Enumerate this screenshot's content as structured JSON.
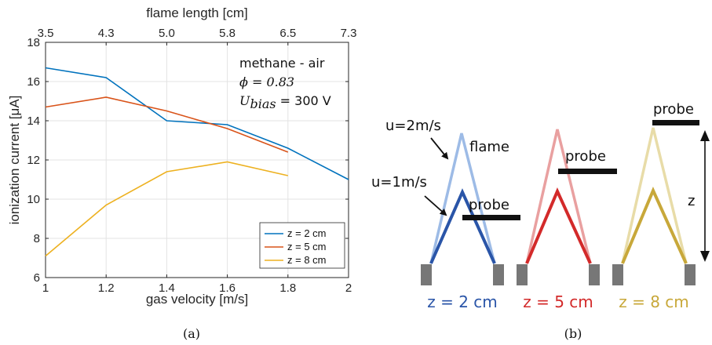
{
  "chart_data": {
    "type": "line",
    "xlabel": "gas velocity [m/s]",
    "ylabel": "ionization current [μA]",
    "top_xlabel": "flame length [cm]",
    "xlim": [
      1,
      2
    ],
    "ylim": [
      6,
      18
    ],
    "xticks": [
      "1",
      "1.2",
      "1.4",
      "1.6",
      "1.8",
      "2"
    ],
    "yticks": [
      "6",
      "8",
      "10",
      "12",
      "14",
      "16",
      "18"
    ],
    "top_ticks": [
      "3.5",
      "4.3",
      "5.0",
      "5.8",
      "6.5",
      "7.3"
    ],
    "grid": true,
    "legend_position": "bottom-right",
    "annotation": {
      "line1": "methane - air",
      "phi": "ϕ = 0.83",
      "u_sym": "U",
      "u_sub": "bias",
      "u_val": " = 300 V"
    },
    "series": [
      {
        "name": "z = 2 cm",
        "color": "#0072BD",
        "x": [
          1,
          1.2,
          1.4,
          1.6,
          1.8,
          2
        ],
        "y": [
          16.7,
          16.2,
          14.0,
          13.8,
          12.6,
          11.0
        ]
      },
      {
        "name": "z = 5 cm",
        "color": "#D95319",
        "x": [
          1,
          1.2,
          1.4,
          1.6,
          1.8
        ],
        "y": [
          14.7,
          15.2,
          14.5,
          13.6,
          12.4
        ]
      },
      {
        "name": "z = 8 cm",
        "color": "#EDB120",
        "x": [
          1,
          1.2,
          1.4,
          1.6,
          1.8
        ],
        "y": [
          7.1,
          9.7,
          11.4,
          11.9,
          11.2
        ]
      }
    ]
  },
  "captions": {
    "a": "(a)",
    "b": "(b)"
  },
  "diagram": {
    "u2": "u=2m/s",
    "u1": "u=1m/s",
    "flame": "flame",
    "probe_labels": [
      "probe",
      "probe",
      "probe"
    ],
    "z_label": "z",
    "z_labels": [
      "z = 2 cm",
      "z = 5 cm",
      "z = 8 cm"
    ],
    "colors": {
      "blue": "#2A55A8",
      "blue_light": "#9DBBE6",
      "red": "#D32A2A",
      "red_light": "#E9A0A0",
      "gold": "#C8A83A",
      "gold_light": "#E8DCA8",
      "burner": "#777777"
    }
  }
}
